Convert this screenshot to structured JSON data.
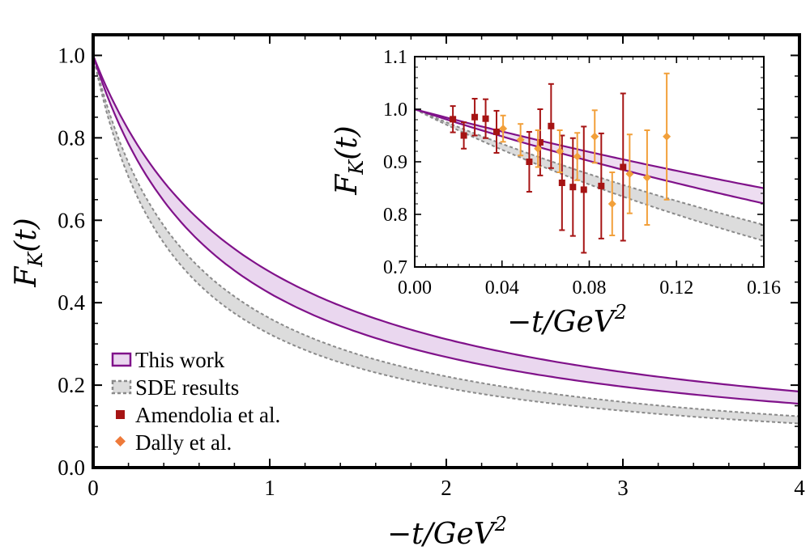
{
  "colors": {
    "this_work_line": "#80128a",
    "this_work_fill": "#ead7ef",
    "sde_line": "#8a8a8a",
    "sde_fill": "#dcdcdc",
    "amendolia": "#a61414",
    "dally": "#f2a03a",
    "dally_marker": "#ee7a3a"
  },
  "chart_data": [
    {
      "name": "main",
      "type": "line",
      "title": "",
      "xlabel": "-t/GeV^2",
      "ylabel": "F_K(t)",
      "xlim": [
        0,
        4
      ],
      "ylim": [
        0,
        1.05
      ],
      "xticks": [
        "0",
        "1",
        "2",
        "3",
        "4"
      ],
      "xtick_values": [
        0,
        1,
        2,
        3,
        4
      ],
      "yticks": [
        "0.0",
        "0.2",
        "0.4",
        "0.6",
        "0.8",
        "1.0"
      ],
      "ytick_values": [
        0,
        0.2,
        0.4,
        0.6,
        0.8,
        1.0
      ],
      "bands": [
        {
          "name": "This work",
          "style": "solid",
          "model": "monopole",
          "upper_m2": 0.905,
          "lower_m2": 0.733,
          "note": "F = 1/(1 + Q^2/m2), Q^2 in GeV^2"
        },
        {
          "name": "SDE results",
          "style": "dashed",
          "model": "monopole",
          "upper_m2": 0.568,
          "lower_m2": 0.479,
          "note": "F = 1/(1 + Q^2/m2), Q^2 in GeV^2"
        }
      ],
      "legend": {
        "placement": "bottom-left",
        "entries": [
          "This work",
          "SDE results",
          "Amendolia et al.",
          "Dally et al."
        ]
      }
    },
    {
      "name": "inset",
      "type": "scatter",
      "xlabel": "-t/GeV^2",
      "ylabel": "F_K(t)",
      "xlim": [
        0,
        0.16
      ],
      "ylim": [
        0.7,
        1.1
      ],
      "xticks": [
        "0.00",
        "0.04",
        "0.08",
        "0.12",
        "0.16"
      ],
      "xtick_values": [
        0,
        0.04,
        0.08,
        0.12,
        0.16
      ],
      "yticks": [
        "0.7",
        "0.8",
        "0.9",
        "1.0",
        "1.1"
      ],
      "ytick_values": [
        0.7,
        0.8,
        0.9,
        1.0,
        1.1
      ],
      "series": [
        {
          "name": "Amendolia et al.",
          "marker": "square",
          "points": [
            {
              "x": 0.0175,
              "y": 0.981,
              "err": 0.025
            },
            {
              "x": 0.0225,
              "y": 0.95,
              "err": 0.025
            },
            {
              "x": 0.0275,
              "y": 0.985,
              "err": 0.035
            },
            {
              "x": 0.0325,
              "y": 0.982,
              "err": 0.037
            },
            {
              "x": 0.0375,
              "y": 0.957,
              "err": 0.04
            },
            {
              "x": 0.0525,
              "y": 0.9,
              "err": 0.057
            },
            {
              "x": 0.0575,
              "y": 0.937,
              "err": 0.063
            },
            {
              "x": 0.0625,
              "y": 0.968,
              "err": 0.08
            },
            {
              "x": 0.0675,
              "y": 0.86,
              "err": 0.09
            },
            {
              "x": 0.0725,
              "y": 0.852,
              "err": 0.093
            },
            {
              "x": 0.0775,
              "y": 0.847,
              "err": 0.12
            },
            {
              "x": 0.0855,
              "y": 0.854,
              "err": 0.1
            },
            {
              "x": 0.0955,
              "y": 0.89,
              "err": 0.14
            }
          ]
        },
        {
          "name": "Dally et al.",
          "marker": "diamond",
          "points": [
            {
              "x": 0.0405,
              "y": 0.963,
              "err": 0.025
            },
            {
              "x": 0.0485,
              "y": 0.942,
              "err": 0.03
            },
            {
              "x": 0.0565,
              "y": 0.925,
              "err": 0.035
            },
            {
              "x": 0.0665,
              "y": 0.92,
              "err": 0.04
            },
            {
              "x": 0.0745,
              "y": 0.91,
              "err": 0.045
            },
            {
              "x": 0.0825,
              "y": 0.948,
              "err": 0.05
            },
            {
              "x": 0.0905,
              "y": 0.82,
              "err": 0.06
            },
            {
              "x": 0.0985,
              "y": 0.877,
              "err": 0.075
            },
            {
              "x": 0.1065,
              "y": 0.87,
              "err": 0.09
            },
            {
              "x": 0.1155,
              "y": 0.948,
              "err": 0.12
            }
          ]
        }
      ]
    }
  ]
}
